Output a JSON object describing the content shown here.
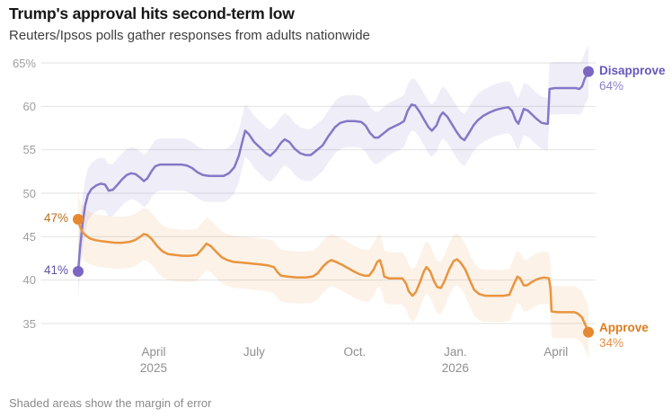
{
  "header": {
    "title": "Trump's approval hits second-term low",
    "subtitle": "Reuters/Ipsos polls gather responses from adults nationwide"
  },
  "footnote": "Shaded areas show the margin of error",
  "chart_data": {
    "type": "line",
    "title": "Trump's approval hits second-term low",
    "subtitle": "Reuters/Ipsos polls gather responses from adults nationwide",
    "grid": true,
    "margin_of_error_points": 3,
    "note": "Shaded areas show the margin of error",
    "x_axis": {
      "unit": "months since first poll (late Jan 2025)",
      "range": [
        0,
        15.22
      ],
      "ticks": [
        {
          "label": "April",
          "sublabel": "2025",
          "t": 2.25
        },
        {
          "label": "July",
          "t": 5.25
        },
        {
          "label": "Oct.",
          "t": 8.25
        },
        {
          "label": "Jan.",
          "sublabel": "2026",
          "t": 11.25
        },
        {
          "label": "April",
          "t": 14.25
        }
      ]
    },
    "y_axis": {
      "unit": "percent",
      "range": [
        35,
        65
      ],
      "ticks": [
        {
          "label": "65%",
          "value": 65
        },
        {
          "label": "60",
          "value": 60
        },
        {
          "label": "55",
          "value": 55
        },
        {
          "label": "50",
          "value": 50
        },
        {
          "label": "45",
          "value": 45
        },
        {
          "label": "40",
          "value": 40
        },
        {
          "label": "35",
          "value": 35
        }
      ]
    },
    "series": [
      {
        "name": "Disapprove",
        "color": "#8478c7",
        "dot_color": "#7a66c3",
        "band_color": "rgba(129,114,199,0.13)",
        "start_value": 41,
        "start_label": "41%",
        "end_value": 64,
        "end_label": "64%",
        "points": [
          [
            0,
            41
          ],
          [
            0.05,
            43.5
          ],
          [
            0.13,
            46.5
          ],
          [
            0.21,
            48.6
          ],
          [
            0.29,
            49.8
          ],
          [
            0.4,
            50.5
          ],
          [
            0.54,
            50.9
          ],
          [
            0.67,
            51.1
          ],
          [
            0.8,
            51
          ],
          [
            0.91,
            50.3
          ],
          [
            1.04,
            50.4
          ],
          [
            1.18,
            51
          ],
          [
            1.31,
            51.6
          ],
          [
            1.45,
            52.1
          ],
          [
            1.58,
            52.3
          ],
          [
            1.71,
            52.2
          ],
          [
            1.85,
            51.8
          ],
          [
            1.96,
            51.4
          ],
          [
            2.06,
            51.7
          ],
          [
            2.2,
            52.6
          ],
          [
            2.3,
            53.1
          ],
          [
            2.44,
            53.3
          ],
          [
            2.76,
            53.3
          ],
          [
            3.08,
            53.3
          ],
          [
            3.24,
            53.2
          ],
          [
            3.4,
            52.9
          ],
          [
            3.56,
            52.4
          ],
          [
            3.72,
            52.1
          ],
          [
            3.91,
            52
          ],
          [
            4.13,
            52
          ],
          [
            4.34,
            52
          ],
          [
            4.5,
            52.3
          ],
          [
            4.66,
            53
          ],
          [
            4.79,
            54.3
          ],
          [
            4.9,
            56
          ],
          [
            4.98,
            57.2
          ],
          [
            5.09,
            56.8
          ],
          [
            5.25,
            55.9
          ],
          [
            5.44,
            55.2
          ],
          [
            5.6,
            54.6
          ],
          [
            5.73,
            54.3
          ],
          [
            5.89,
            54.9
          ],
          [
            6.05,
            55.8
          ],
          [
            6.16,
            56.2
          ],
          [
            6.3,
            55.9
          ],
          [
            6.46,
            55.1
          ],
          [
            6.62,
            54.6
          ],
          [
            6.78,
            54.4
          ],
          [
            6.94,
            54.4
          ],
          [
            7.1,
            54.9
          ],
          [
            7.29,
            55.5
          ],
          [
            7.47,
            56.6
          ],
          [
            7.66,
            57.6
          ],
          [
            7.82,
            58.1
          ],
          [
            8.01,
            58.3
          ],
          [
            8.25,
            58.3
          ],
          [
            8.44,
            58.2
          ],
          [
            8.57,
            57.8
          ],
          [
            8.71,
            56.9
          ],
          [
            8.84,
            56.4
          ],
          [
            8.95,
            56.4
          ],
          [
            9.11,
            56.9
          ],
          [
            9.27,
            57.4
          ],
          [
            9.43,
            57.7
          ],
          [
            9.59,
            58
          ],
          [
            9.72,
            58.3
          ],
          [
            9.83,
            59.5
          ],
          [
            9.94,
            60.2
          ],
          [
            10.05,
            60.1
          ],
          [
            10.18,
            59.4
          ],
          [
            10.31,
            58.5
          ],
          [
            10.45,
            57.6
          ],
          [
            10.55,
            57.2
          ],
          [
            10.69,
            57.8
          ],
          [
            10.8,
            58.9
          ],
          [
            10.88,
            59.3
          ],
          [
            11.01,
            58.8
          ],
          [
            11.14,
            58
          ],
          [
            11.28,
            57.1
          ],
          [
            11.41,
            56.4
          ],
          [
            11.52,
            56.1
          ],
          [
            11.65,
            56.9
          ],
          [
            11.79,
            57.8
          ],
          [
            11.92,
            58.4
          ],
          [
            12.08,
            58.9
          ],
          [
            12.27,
            59.3
          ],
          [
            12.46,
            59.6
          ],
          [
            12.67,
            59.8
          ],
          [
            12.83,
            59.9
          ],
          [
            12.94,
            59.5
          ],
          [
            13.05,
            58.4
          ],
          [
            13.13,
            58
          ],
          [
            13.21,
            58.8
          ],
          [
            13.29,
            59.7
          ],
          [
            13.42,
            59.5
          ],
          [
            13.55,
            59
          ],
          [
            13.69,
            58.5
          ],
          [
            13.82,
            58.1
          ],
          [
            13.96,
            58
          ],
          [
            14.01,
            58
          ],
          [
            14.06,
            62
          ],
          [
            14.22,
            62.1
          ],
          [
            14.55,
            62.1
          ],
          [
            14.84,
            62.1
          ],
          [
            14.95,
            62
          ],
          [
            15.03,
            62.3
          ],
          [
            15.11,
            63.2
          ],
          [
            15.22,
            64
          ]
        ]
      },
      {
        "name": "Approve",
        "color": "#e9943e",
        "dot_color": "#e6882f",
        "band_color": "rgba(233,148,62,0.12)",
        "start_value": 47,
        "start_label": "47%",
        "end_value": 34,
        "end_label": "34%",
        "points": [
          [
            0,
            47
          ],
          [
            0.05,
            46.2
          ],
          [
            0.13,
            45.5
          ],
          [
            0.24,
            45.1
          ],
          [
            0.35,
            44.8
          ],
          [
            0.51,
            44.6
          ],
          [
            0.67,
            44.5
          ],
          [
            0.88,
            44.4
          ],
          [
            1.1,
            44.3
          ],
          [
            1.31,
            44.3
          ],
          [
            1.53,
            44.4
          ],
          [
            1.69,
            44.6
          ],
          [
            1.82,
            44.9
          ],
          [
            1.96,
            45.3
          ],
          [
            2.06,
            45.2
          ],
          [
            2.2,
            44.7
          ],
          [
            2.36,
            43.9
          ],
          [
            2.52,
            43.3
          ],
          [
            2.68,
            43
          ],
          [
            2.87,
            42.9
          ],
          [
            3.11,
            42.8
          ],
          [
            3.35,
            42.8
          ],
          [
            3.54,
            42.9
          ],
          [
            3.7,
            43.6
          ],
          [
            3.83,
            44.2
          ],
          [
            3.96,
            43.9
          ],
          [
            4.13,
            43.2
          ],
          [
            4.29,
            42.6
          ],
          [
            4.45,
            42.3
          ],
          [
            4.63,
            42.1
          ],
          [
            4.9,
            42
          ],
          [
            5.17,
            41.9
          ],
          [
            5.44,
            41.8
          ],
          [
            5.65,
            41.7
          ],
          [
            5.84,
            41.5
          ],
          [
            5.95,
            40.9
          ],
          [
            6.05,
            40.5
          ],
          [
            6.24,
            40.4
          ],
          [
            6.51,
            40.3
          ],
          [
            6.78,
            40.3
          ],
          [
            6.99,
            40.4
          ],
          [
            7.15,
            40.8
          ],
          [
            7.31,
            41.6
          ],
          [
            7.45,
            42.1
          ],
          [
            7.55,
            42.3
          ],
          [
            7.69,
            42.1
          ],
          [
            7.85,
            41.8
          ],
          [
            8.04,
            41.4
          ],
          [
            8.22,
            41
          ],
          [
            8.38,
            40.7
          ],
          [
            8.54,
            40.5
          ],
          [
            8.68,
            40.5
          ],
          [
            8.81,
            41.2
          ],
          [
            8.92,
            42.1
          ],
          [
            9,
            42.3
          ],
          [
            9.08,
            41.3
          ],
          [
            9.13,
            40.4
          ],
          [
            9.27,
            40.2
          ],
          [
            9.46,
            40.2
          ],
          [
            9.67,
            40.2
          ],
          [
            9.78,
            39.6
          ],
          [
            9.86,
            38.7
          ],
          [
            9.97,
            38.2
          ],
          [
            10.07,
            38.6
          ],
          [
            10.21,
            39.9
          ],
          [
            10.31,
            41
          ],
          [
            10.39,
            41.5
          ],
          [
            10.5,
            41
          ],
          [
            10.61,
            39.9
          ],
          [
            10.71,
            39.2
          ],
          [
            10.82,
            39.1
          ],
          [
            10.93,
            39.9
          ],
          [
            11.06,
            41.2
          ],
          [
            11.2,
            42.2
          ],
          [
            11.3,
            42.4
          ],
          [
            11.41,
            42
          ],
          [
            11.55,
            41.2
          ],
          [
            11.68,
            40
          ],
          [
            11.81,
            38.9
          ],
          [
            11.95,
            38.4
          ],
          [
            12.13,
            38.2
          ],
          [
            12.4,
            38.2
          ],
          [
            12.67,
            38.2
          ],
          [
            12.86,
            38.3
          ],
          [
            12.99,
            39.5
          ],
          [
            13.1,
            40.4
          ],
          [
            13.18,
            40.2
          ],
          [
            13.29,
            39.4
          ],
          [
            13.39,
            39.4
          ],
          [
            13.5,
            39.7
          ],
          [
            13.63,
            40
          ],
          [
            13.77,
            40.2
          ],
          [
            13.9,
            40.3
          ],
          [
            14.04,
            40.2
          ],
          [
            14.09,
            39
          ],
          [
            14.12,
            36.4
          ],
          [
            14.28,
            36.3
          ],
          [
            14.55,
            36.3
          ],
          [
            14.81,
            36.3
          ],
          [
            14.92,
            36.1
          ],
          [
            15.03,
            35.7
          ],
          [
            15.11,
            35
          ],
          [
            15.22,
            34
          ]
        ]
      }
    ]
  }
}
